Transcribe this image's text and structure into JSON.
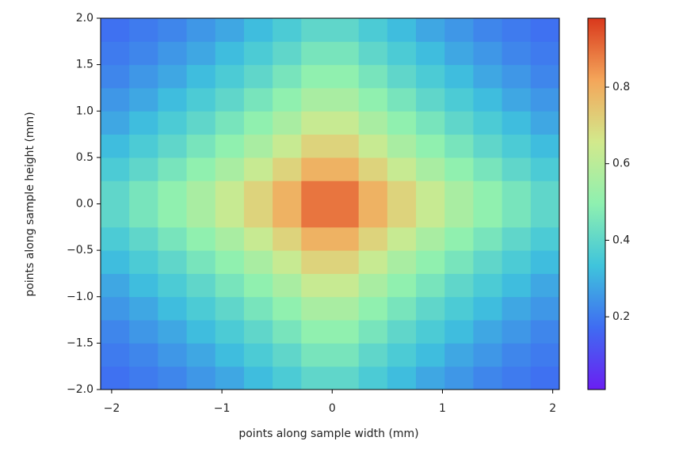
{
  "chart_data": {
    "type": "heatmap",
    "xlabel": "points along sample width (mm)",
    "ylabel": "points along sample height (mm)",
    "x": [
      -2.1,
      -1.84,
      -1.58,
      -1.32,
      -1.06,
      -0.8,
      -0.54,
      -0.28,
      -0.02,
      0.24,
      0.5,
      0.76,
      1.02,
      1.28,
      1.54,
      1.8,
      2.06
    ],
    "y": [
      -2,
      -1.75,
      -1.5,
      -1.25,
      -1,
      -0.75,
      -0.5,
      -0.25,
      0,
      0.25,
      0.5,
      0.75,
      1,
      1.25,
      1.5,
      1.75,
      2
    ],
    "z": [
      [
        0.18,
        0.2,
        0.22,
        0.25,
        0.28,
        0.32,
        0.36,
        0.4,
        0.4,
        0.36,
        0.32,
        0.28,
        0.25,
        0.22,
        0.2,
        0.18
      ],
      [
        0.2,
        0.22,
        0.25,
        0.28,
        0.32,
        0.36,
        0.4,
        0.45,
        0.45,
        0.4,
        0.36,
        0.32,
        0.28,
        0.25,
        0.22,
        0.2
      ],
      [
        0.22,
        0.25,
        0.28,
        0.32,
        0.36,
        0.4,
        0.45,
        0.5,
        0.5,
        0.45,
        0.4,
        0.36,
        0.32,
        0.28,
        0.25,
        0.22
      ],
      [
        0.25,
        0.28,
        0.32,
        0.36,
        0.4,
        0.45,
        0.5,
        0.56,
        0.56,
        0.5,
        0.45,
        0.4,
        0.36,
        0.32,
        0.28,
        0.25
      ],
      [
        0.28,
        0.32,
        0.36,
        0.4,
        0.45,
        0.5,
        0.56,
        0.63,
        0.63,
        0.56,
        0.5,
        0.45,
        0.4,
        0.36,
        0.32,
        0.28
      ],
      [
        0.32,
        0.36,
        0.4,
        0.45,
        0.5,
        0.56,
        0.63,
        0.71,
        0.71,
        0.63,
        0.56,
        0.5,
        0.45,
        0.4,
        0.36,
        0.32
      ],
      [
        0.36,
        0.4,
        0.45,
        0.5,
        0.56,
        0.63,
        0.71,
        0.79,
        0.79,
        0.71,
        0.63,
        0.56,
        0.5,
        0.45,
        0.4,
        0.36
      ],
      [
        0.4,
        0.45,
        0.5,
        0.56,
        0.63,
        0.71,
        0.79,
        0.89,
        0.89,
        0.79,
        0.71,
        0.63,
        0.56,
        0.5,
        0.45,
        0.4
      ],
      [
        0.4,
        0.45,
        0.5,
        0.56,
        0.63,
        0.71,
        0.79,
        0.89,
        0.89,
        0.79,
        0.71,
        0.63,
        0.56,
        0.5,
        0.45,
        0.4
      ],
      [
        0.36,
        0.4,
        0.45,
        0.5,
        0.56,
        0.63,
        0.71,
        0.79,
        0.79,
        0.71,
        0.63,
        0.56,
        0.5,
        0.45,
        0.4,
        0.36
      ],
      [
        0.32,
        0.36,
        0.4,
        0.45,
        0.5,
        0.56,
        0.63,
        0.71,
        0.71,
        0.63,
        0.56,
        0.5,
        0.45,
        0.4,
        0.36,
        0.32
      ],
      [
        0.28,
        0.32,
        0.36,
        0.4,
        0.45,
        0.5,
        0.56,
        0.63,
        0.63,
        0.56,
        0.5,
        0.45,
        0.4,
        0.36,
        0.32,
        0.28
      ],
      [
        0.25,
        0.28,
        0.32,
        0.36,
        0.4,
        0.45,
        0.5,
        0.56,
        0.56,
        0.5,
        0.45,
        0.4,
        0.36,
        0.32,
        0.28,
        0.25
      ],
      [
        0.22,
        0.25,
        0.28,
        0.32,
        0.36,
        0.4,
        0.45,
        0.5,
        0.5,
        0.45,
        0.4,
        0.36,
        0.32,
        0.28,
        0.25,
        0.22
      ],
      [
        0.2,
        0.22,
        0.25,
        0.28,
        0.32,
        0.36,
        0.4,
        0.45,
        0.45,
        0.4,
        0.36,
        0.32,
        0.28,
        0.25,
        0.22,
        0.2
      ],
      [
        0.18,
        0.2,
        0.22,
        0.25,
        0.28,
        0.32,
        0.36,
        0.4,
        0.4,
        0.36,
        0.32,
        0.28,
        0.25,
        0.22,
        0.2,
        0.18
      ]
    ],
    "xlim": [
      -2.1,
      2.06
    ],
    "ylim": [
      -2,
      2
    ],
    "xticks": [
      {
        "value": -2,
        "label": "−2"
      },
      {
        "value": -1,
        "label": "−1"
      },
      0,
      1,
      2
    ],
    "yticks": [
      {
        "value": -2,
        "label": "−2.0"
      },
      {
        "value": -1.5,
        "label": "−1.5"
      },
      {
        "value": -1,
        "label": "−1.0"
      },
      {
        "value": -0.5,
        "label": "−0.5"
      },
      {
        "value": 0,
        "label": "0.0"
      },
      0.5,
      {
        "value": 1,
        "label": "1.0"
      },
      1.5,
      {
        "value": 2,
        "label": "2.0"
      }
    ],
    "clim": [
      0.01,
      0.98
    ],
    "cticks": [
      0.2,
      0.4,
      0.6,
      0.8
    ],
    "colormap": [
      "#6a1ff2",
      "#3f6cf2",
      "#3fc4dc",
      "#8ef0b0",
      "#d2e98c",
      "#f4a65a",
      "#d9381c"
    ]
  }
}
